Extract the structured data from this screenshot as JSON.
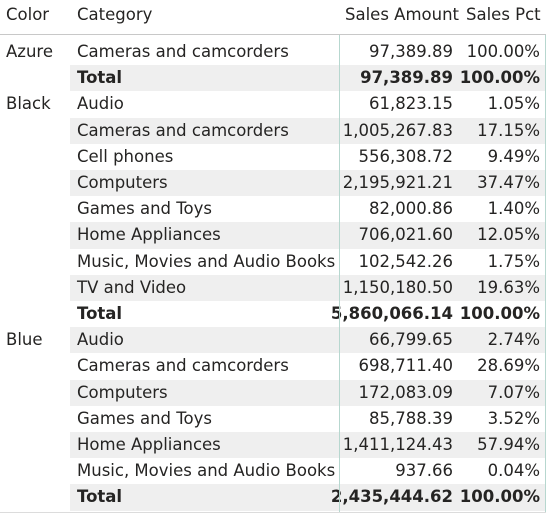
{
  "headers": {
    "color": "Color",
    "category": "Category",
    "sales_amount": "Sales Amount",
    "sales_pct": "Sales Pct"
  },
  "colors": {
    "row_band": "#efefef",
    "divider": "#b7d7cf",
    "header_rule": "#c8c8c8",
    "text": "#252423"
  },
  "groups": [
    {
      "color": "Azure",
      "rows": [
        {
          "category": "Cameras and camcorders",
          "amount": "97,389.89",
          "pct": "100.00%"
        },
        {
          "category": "Total",
          "amount": "97,389.89",
          "pct": "100.00%",
          "total": true
        }
      ]
    },
    {
      "color": "Black",
      "rows": [
        {
          "category": "Audio",
          "amount": "61,823.15",
          "pct": "1.05%"
        },
        {
          "category": "Cameras and camcorders",
          "amount": "1,005,267.83",
          "pct": "17.15%"
        },
        {
          "category": "Cell phones",
          "amount": "556,308.72",
          "pct": "9.49%"
        },
        {
          "category": "Computers",
          "amount": "2,195,921.21",
          "pct": "37.47%"
        },
        {
          "category": "Games and Toys",
          "amount": "82,000.86",
          "pct": "1.40%"
        },
        {
          "category": "Home Appliances",
          "amount": "706,021.60",
          "pct": "12.05%"
        },
        {
          "category": "Music, Movies and Audio Books",
          "amount": "102,542.26",
          "pct": "1.75%"
        },
        {
          "category": "TV and Video",
          "amount": "1,150,180.50",
          "pct": "19.63%"
        },
        {
          "category": "Total",
          "amount": "5,860,066.14",
          "pct": "100.00%",
          "total": true
        }
      ]
    },
    {
      "color": "Blue",
      "rows": [
        {
          "category": "Audio",
          "amount": "66,799.65",
          "pct": "2.74%"
        },
        {
          "category": "Cameras and camcorders",
          "amount": "698,711.40",
          "pct": "28.69%"
        },
        {
          "category": "Computers",
          "amount": "172,083.09",
          "pct": "7.07%"
        },
        {
          "category": "Games and Toys",
          "amount": "85,788.39",
          "pct": "3.52%"
        },
        {
          "category": "Home Appliances",
          "amount": "1,411,124.43",
          "pct": "57.94%"
        },
        {
          "category": "Music, Movies and Audio Books",
          "amount": "937.66",
          "pct": "0.04%"
        },
        {
          "category": "Total",
          "amount": "2,435,444.62",
          "pct": "100.00%",
          "total": true
        }
      ]
    }
  ]
}
